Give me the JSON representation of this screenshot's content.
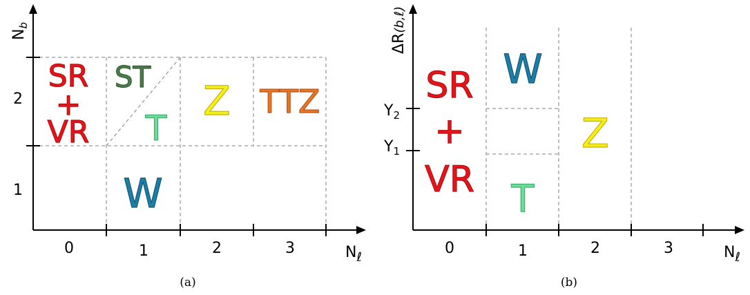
{
  "colors": {
    "sr": "#e8141a",
    "st": "#4e7d4e",
    "t": "#6fdc9a",
    "z": "#f3ef1c",
    "ttz": "#e8772a",
    "w": "#1f7ea8"
  },
  "panel_a": {
    "caption": "(a)",
    "y_axis_label": "N",
    "y_axis_sub": "b",
    "x_axis_label": "N",
    "x_axis_sub": "ℓ",
    "x_ticks": [
      "0",
      "1",
      "2",
      "3"
    ],
    "y_ticks": [
      "1",
      "2"
    ],
    "regions": {
      "sr_line1": "SR",
      "sr_plus": "+",
      "sr_line2": "VR",
      "st": "ST",
      "t": "T",
      "z": "Z",
      "ttz": "TTZ",
      "w": "W"
    }
  },
  "panel_b": {
    "caption": "(b)",
    "y_axis_label": "ΔR",
    "y_axis_sub": "(b,ℓ)",
    "x_axis_label": "N",
    "x_axis_sub": "ℓ",
    "x_ticks": [
      "0",
      "1",
      "2",
      "3"
    ],
    "y_ticks": [
      {
        "main": "Y",
        "sub": "1"
      },
      {
        "main": "Y",
        "sub": "2"
      }
    ],
    "regions": {
      "sr_line1": "SR",
      "sr_plus": "+",
      "sr_line2": "VR",
      "w": "W",
      "t": "T",
      "z": "Z"
    }
  }
}
